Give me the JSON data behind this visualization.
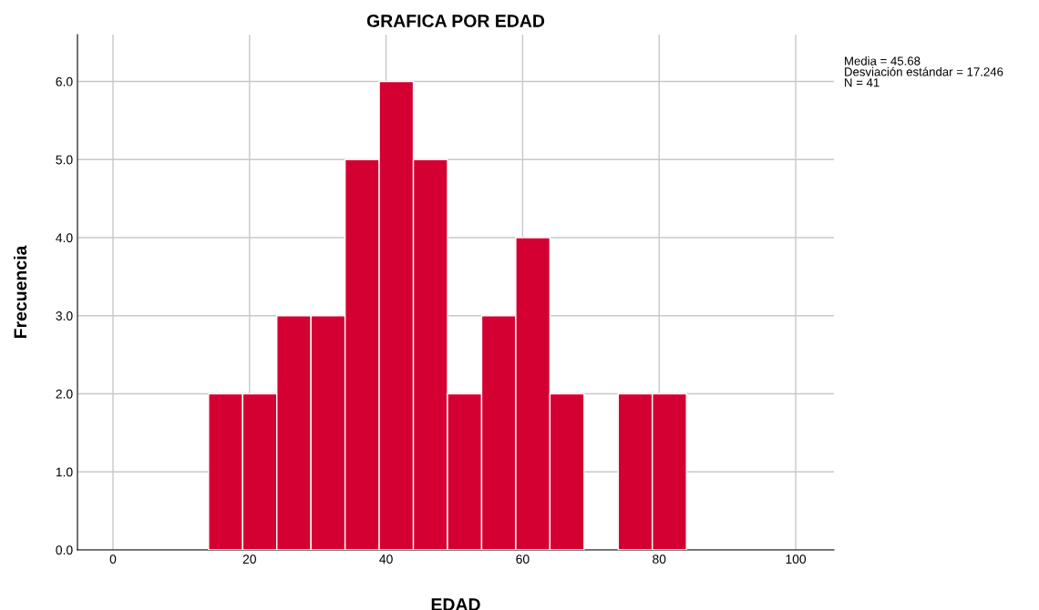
{
  "chart_data": {
    "type": "histogram",
    "title": "GRAFICA POR EDAD",
    "xlabel": "EDAD",
    "ylabel": "Frecuencia",
    "bins": [
      14,
      19,
      24,
      29,
      34,
      39,
      44,
      49,
      54,
      59,
      64,
      69,
      74,
      79,
      84
    ],
    "values": [
      2,
      2,
      3,
      3,
      5,
      6,
      5,
      2,
      3,
      4,
      2,
      0,
      2,
      2
    ],
    "color": "#d50032",
    "xlim": [
      -5.2,
      105.6
    ],
    "xticks": [
      0,
      20,
      40,
      60,
      80,
      100
    ],
    "ylim": [
      0,
      6.6
    ],
    "yticks": [
      {
        "value": 0,
        "label": "0.0"
      },
      {
        "value": 1,
        "label": "1.0"
      },
      {
        "value": 2,
        "label": "2.0"
      },
      {
        "value": 3,
        "label": "3.0"
      },
      {
        "value": 4,
        "label": "4.0"
      },
      {
        "value": 5,
        "label": "5.0"
      },
      {
        "value": 6,
        "label": "6.0"
      }
    ],
    "grid": true,
    "annotations": [
      "Media = 45.68\nDesviación estándar = 17.246\nN = 41"
    ]
  }
}
